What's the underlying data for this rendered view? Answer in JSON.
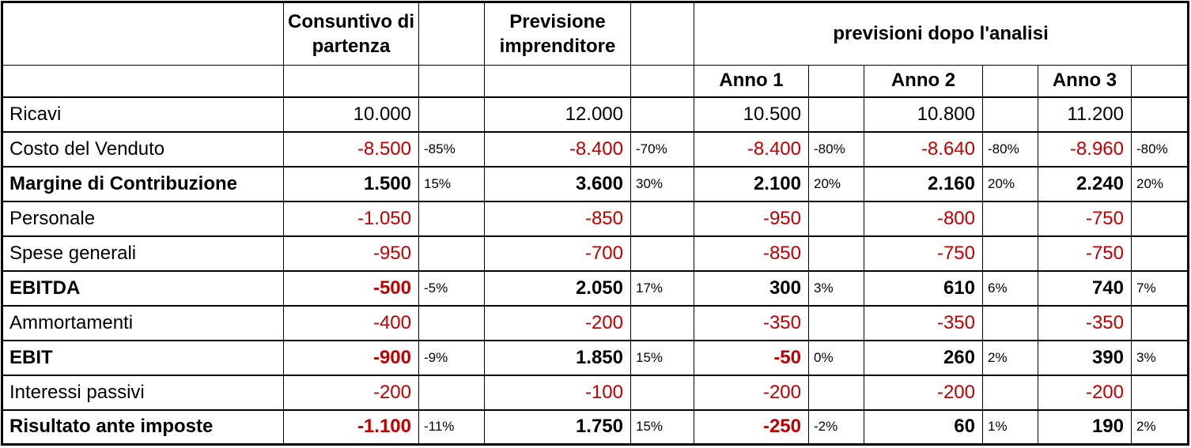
{
  "colors": {
    "negative_value": "#C00000",
    "text": "#000000",
    "border": "#000000",
    "background": "#FFFFFF"
  },
  "header": {
    "corner": "",
    "consuntivo": "Consuntivo di partenza",
    "previsione": "Previsione imprenditore",
    "analisi": "previsioni dopo l'analisi",
    "anni": [
      "Anno 1",
      "Anno 2",
      "Anno 3"
    ]
  },
  "rows": [
    {
      "label": "Ricavi",
      "bold": false,
      "values": [
        "10.000",
        "12.000",
        "10.500",
        "10.800",
        "11.200"
      ],
      "pcts": [
        "",
        "",
        "",
        "",
        ""
      ]
    },
    {
      "label": "Costo del Venduto",
      "bold": false,
      "values": [
        "-8.500",
        "-8.400",
        "-8.400",
        "-8.640",
        "-8.960"
      ],
      "pcts": [
        "-85%",
        "-70%",
        "-80%",
        "-80%",
        "-80%"
      ]
    },
    {
      "label": "Margine di Contribuzione",
      "bold": true,
      "values": [
        "1.500",
        "3.600",
        "2.100",
        "2.160",
        "2.240"
      ],
      "pcts": [
        "15%",
        "30%",
        "20%",
        "20%",
        "20%"
      ]
    },
    {
      "label": "Personale",
      "bold": false,
      "values": [
        "-1.050",
        "-850",
        "-950",
        "-800",
        "-750"
      ],
      "pcts": [
        "",
        "",
        "",
        "",
        ""
      ]
    },
    {
      "label": "Spese generali",
      "bold": false,
      "values": [
        "-950",
        "-700",
        "-850",
        "-750",
        "-750"
      ],
      "pcts": [
        "",
        "",
        "",
        "",
        ""
      ]
    },
    {
      "label": "EBITDA",
      "bold": true,
      "values": [
        "-500",
        "2.050",
        "300",
        "610",
        "740"
      ],
      "pcts": [
        "-5%",
        "17%",
        "3%",
        "6%",
        "7%"
      ]
    },
    {
      "label": "Ammortamenti",
      "bold": false,
      "values": [
        "-400",
        "-200",
        "-350",
        "-350",
        "-350"
      ],
      "pcts": [
        "",
        "",
        "",
        "",
        ""
      ]
    },
    {
      "label": "EBIT",
      "bold": true,
      "values": [
        "-900",
        "1.850",
        "-50",
        "260",
        "390"
      ],
      "pcts": [
        "-9%",
        "15%",
        "0%",
        "2%",
        "3%"
      ]
    },
    {
      "label": "Interessi passivi",
      "bold": false,
      "values": [
        "-200",
        "-100",
        "-200",
        "-200",
        "-200"
      ],
      "pcts": [
        "",
        "",
        "",
        "",
        ""
      ]
    },
    {
      "label": "Risultato ante imposte",
      "bold": true,
      "values": [
        "-1.100",
        "1.750",
        "-250",
        "60",
        "190"
      ],
      "pcts": [
        "-11%",
        "15%",
        "-2%",
        "1%",
        "2%"
      ]
    }
  ]
}
